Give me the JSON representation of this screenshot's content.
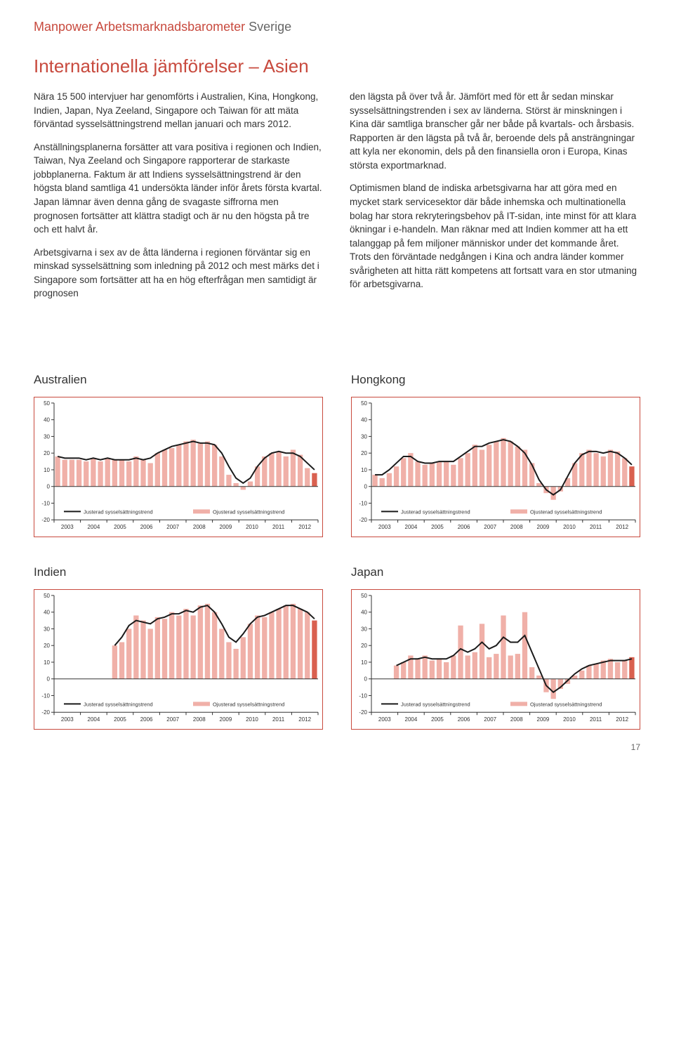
{
  "header": {
    "brand": "Manpower Arbetsmarknadsbarometer",
    "country": "Sverige"
  },
  "section_title": "Internationella jämförelser – Asien",
  "body": {
    "left": {
      "p1": "Nära 15 500 intervjuer har genomförts i Australien, Kina, Hongkong, Indien, Japan, Nya Zeeland, Singapore och Taiwan för att mäta förväntad sysselsättningstrend mellan januari och mars 2012.",
      "p2": "Anställningsplanerna forsätter att vara positiva i regionen och Indien, Taiwan, Nya Zeeland och Singapore rapporterar de starkaste jobbplanerna. Faktum är att Indiens sysselsättningstrend är den högsta bland samtliga 41 undersökta länder inför årets första kvartal. Japan lämnar även denna gång de svagaste siffrorna men prognosen fortsätter att klättra stadigt och är nu den högsta på tre och ett halvt år.",
      "p3": "Arbetsgivarna i sex av de åtta länderna i regionen förväntar sig en minskad sysselsättning som inledning på 2012 och mest märks det i Singapore som fortsätter att ha en hög efterfrågan men samtidigt är prognosen"
    },
    "right": {
      "p1": "den lägsta på över två år. Jämfört med för ett år sedan minskar sysselsättningstrenden i sex av länderna. Störst är minskningen i Kina där samtliga branscher går ner både på kvartals- och årsbasis. Rapporten är den lägsta på två år, beroende dels på ansträngningar att kyla ner ekonomin, dels på den finansiella oron i Europa, Kinas största exportmarknad.",
      "p2": "Optimismen bland de indiska arbetsgivarna har att göra med en mycket stark servicesektor där både inhemska och multinationella bolag har stora rekryteringsbehov på IT-sidan, inte minst för att klara ökningar i e-handeln. Man räknar med att Indien kommer att ha ett talanggap på fem miljoner människor under det kommande året. Trots den förväntade nedgången i Kina och andra länder kommer svårigheten att hitta rätt kompetens att fortsatt vara en stor utmaning för arbetsgivarna."
    }
  },
  "chart_common": {
    "y_min": -20,
    "y_max": 50,
    "y_step": 10,
    "y_ticks": [
      -20,
      -10,
      0,
      10,
      20,
      30,
      40,
      50
    ],
    "x_labels": [
      "2003",
      "2004",
      "2005",
      "2006",
      "2007",
      "2008",
      "2009",
      "2010",
      "2011",
      "2012"
    ],
    "bar_color": "#f0b0a8",
    "last_bar_color": "#d9604f",
    "line_color": "#1a1a1a",
    "axis_color": "#333333",
    "grid_color": "#cccccc",
    "frame_color": "#c84a3e",
    "legend_line": "Justerad sysselsättningstrend",
    "legend_bar": "Ojusterad sysselsättningstrend",
    "label_fontsize": 8,
    "tick_fontsize": 8
  },
  "charts": [
    {
      "title": "Australien",
      "bars": [
        18,
        16,
        16,
        16,
        15,
        17,
        15,
        17,
        16,
        16,
        15,
        18,
        16,
        14,
        20,
        22,
        23,
        25,
        27,
        28,
        26,
        27,
        25,
        18,
        7,
        2,
        -2,
        3,
        12,
        18,
        20,
        21,
        18,
        22,
        19,
        11,
        8
      ],
      "line": [
        18,
        17,
        17,
        17,
        16,
        17,
        16,
        17,
        16,
        16,
        16,
        17,
        16,
        17,
        20,
        22,
        24,
        25,
        26,
        27,
        26,
        26,
        25,
        20,
        12,
        5,
        2,
        5,
        12,
        17,
        20,
        21,
        20,
        20,
        18,
        14,
        10
      ]
    },
    {
      "title": "Hongkong",
      "bars": [
        7,
        5,
        8,
        12,
        17,
        20,
        15,
        13,
        14,
        15,
        15,
        13,
        17,
        20,
        25,
        22,
        25,
        27,
        29,
        27,
        24,
        22,
        14,
        2,
        -4,
        -8,
        -3,
        5,
        14,
        20,
        22,
        20,
        18,
        22,
        21,
        17,
        12
      ],
      "line": [
        7,
        7,
        10,
        14,
        18,
        18,
        15,
        14,
        14,
        15,
        15,
        15,
        18,
        21,
        24,
        24,
        26,
        27,
        28,
        27,
        24,
        20,
        13,
        4,
        -2,
        -5,
        -2,
        6,
        14,
        19,
        21,
        21,
        20,
        21,
        20,
        17,
        13
      ]
    },
    {
      "title": "Indien",
      "bars": [
        null,
        null,
        null,
        null,
        null,
        null,
        null,
        null,
        20,
        22,
        30,
        38,
        35,
        30,
        37,
        36,
        40,
        38,
        42,
        38,
        44,
        45,
        40,
        30,
        22,
        18,
        25,
        33,
        38,
        37,
        40,
        42,
        44,
        45,
        42,
        40,
        35
      ],
      "line": [
        null,
        null,
        null,
        null,
        null,
        null,
        null,
        null,
        20,
        25,
        32,
        35,
        34,
        33,
        36,
        37,
        39,
        39,
        41,
        40,
        43,
        44,
        40,
        33,
        25,
        22,
        27,
        33,
        37,
        38,
        40,
        42,
        44,
        44,
        42,
        40,
        36
      ]
    },
    {
      "title": "Japan",
      "bars": [
        null,
        null,
        null,
        8,
        10,
        14,
        12,
        14,
        11,
        12,
        10,
        14,
        32,
        14,
        16,
        33,
        13,
        15,
        38,
        14,
        15,
        40,
        7,
        2,
        -8,
        -12,
        -6,
        -3,
        2,
        5,
        8,
        9,
        11,
        12,
        10,
        11,
        13
      ],
      "line": [
        null,
        null,
        null,
        8,
        10,
        12,
        12,
        13,
        12,
        12,
        12,
        14,
        18,
        16,
        18,
        22,
        18,
        20,
        25,
        22,
        22,
        26,
        16,
        6,
        -4,
        -8,
        -5,
        -1,
        3,
        6,
        8,
        9,
        10,
        11,
        11,
        11,
        12
      ]
    }
  ],
  "page_number": "17"
}
